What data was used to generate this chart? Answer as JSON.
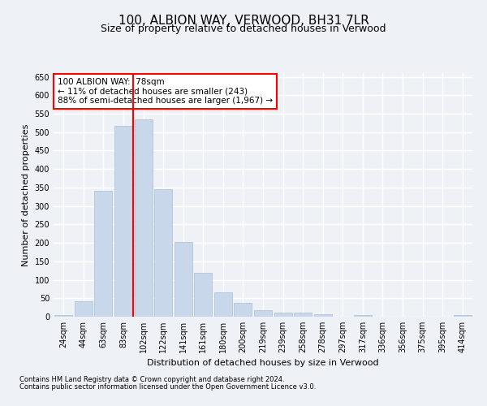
{
  "title": "100, ALBION WAY, VERWOOD, BH31 7LR",
  "subtitle": "Size of property relative to detached houses in Verwood",
  "xlabel": "Distribution of detached houses by size in Verwood",
  "ylabel": "Number of detached properties",
  "categories": [
    "24sqm",
    "44sqm",
    "63sqm",
    "83sqm",
    "102sqm",
    "122sqm",
    "141sqm",
    "161sqm",
    "180sqm",
    "200sqm",
    "219sqm",
    "239sqm",
    "258sqm",
    "278sqm",
    "297sqm",
    "317sqm",
    "336sqm",
    "356sqm",
    "375sqm",
    "395sqm",
    "414sqm"
  ],
  "values": [
    5,
    42,
    340,
    517,
    535,
    345,
    203,
    119,
    67,
    37,
    18,
    12,
    11,
    7,
    0,
    5,
    0,
    0,
    0,
    0,
    5
  ],
  "bar_color": "#c8d8ea",
  "bar_edgecolor": "#a8c0d6",
  "vline_color": "red",
  "vline_index": 3,
  "annotation_text": "100 ALBION WAY:  78sqm\n← 11% of detached houses are smaller (243)\n88% of semi-detached houses are larger (1,967) →",
  "annotation_box_color": "white",
  "annotation_box_edgecolor": "red",
  "ylim": [
    0,
    660
  ],
  "yticks": [
    0,
    50,
    100,
    150,
    200,
    250,
    300,
    350,
    400,
    450,
    500,
    550,
    600,
    650
  ],
  "footer1": "Contains HM Land Registry data © Crown copyright and database right 2024.",
  "footer2": "Contains public sector information licensed under the Open Government Licence v3.0.",
  "background_color": "#eef2f7",
  "grid_color": "#ffffff",
  "title_fontsize": 11,
  "subtitle_fontsize": 9,
  "axis_label_fontsize": 8,
  "tick_fontsize": 7,
  "footer_fontsize": 6
}
